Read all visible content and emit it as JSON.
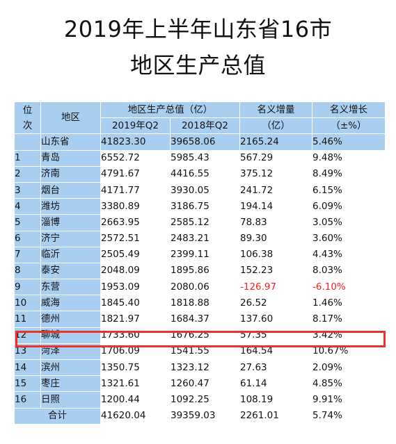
{
  "title": {
    "line1": "2019年上半年山东省16市",
    "line2": "地区生产总值"
  },
  "header": {
    "rank_line1": "位",
    "rank_line2": "次",
    "region": "地区",
    "gdp_group": "地区生产总值（亿）",
    "gdp_2019": "2019年Q2",
    "gdp_2018": "2018年Q2",
    "increase_line1": "名义增量",
    "increase_line2": "（亿）",
    "growth_line1": "名义增长",
    "growth_line2": "（±%）"
  },
  "province": {
    "region": "山东省",
    "gdp_2019": "41823.30",
    "gdp_2018": "39658.06",
    "increase": "2165.24",
    "growth": "5.46%"
  },
  "rows": [
    {
      "rank": "1",
      "region": "青岛",
      "gdp_2019": "6552.72",
      "gdp_2018": "5985.43",
      "increase": "567.29",
      "growth": "9.48%"
    },
    {
      "rank": "2",
      "region": "济南",
      "gdp_2019": "4791.67",
      "gdp_2018": "4416.55",
      "increase": "375.12",
      "growth": "8.49%"
    },
    {
      "rank": "3",
      "region": "烟台",
      "gdp_2019": "4171.77",
      "gdp_2018": "3930.05",
      "increase": "241.72",
      "growth": "6.15%"
    },
    {
      "rank": "4",
      "region": "潍坊",
      "gdp_2019": "3380.89",
      "gdp_2018": "3186.75",
      "increase": "194.14",
      "growth": "6.09%"
    },
    {
      "rank": "5",
      "region": "淄博",
      "gdp_2019": "2663.95",
      "gdp_2018": "2585.12",
      "increase": "78.83",
      "growth": "3.05%"
    },
    {
      "rank": "6",
      "region": "济宁",
      "gdp_2019": "2572.51",
      "gdp_2018": "2483.21",
      "increase": "89.30",
      "growth": "3.60%"
    },
    {
      "rank": "7",
      "region": "临沂",
      "gdp_2019": "2505.49",
      "gdp_2018": "2399.11",
      "increase": "106.38",
      "growth": "4.43%"
    },
    {
      "rank": "8",
      "region": "泰安",
      "gdp_2019": "2048.09",
      "gdp_2018": "1895.86",
      "increase": "152.23",
      "growth": "8.03%"
    },
    {
      "rank": "9",
      "region": "东营",
      "gdp_2019": "1953.09",
      "gdp_2018": "2080.06",
      "increase": "-126.97",
      "growth": "-6.10%",
      "negative": true
    },
    {
      "rank": "10",
      "region": "威海",
      "gdp_2019": "1845.40",
      "gdp_2018": "1818.88",
      "increase": "26.52",
      "growth": "1.46%"
    },
    {
      "rank": "11",
      "region": "德州",
      "gdp_2019": "1821.97",
      "gdp_2018": "1684.37",
      "increase": "137.60",
      "growth": "8.17%"
    },
    {
      "rank": "12",
      "region": "聊城",
      "gdp_2019": "1733.60",
      "gdp_2018": "1676.25",
      "increase": "57.35",
      "growth": "3.42%",
      "highlighted": true
    },
    {
      "rank": "13",
      "region": "菏泽",
      "gdp_2019": "1706.09",
      "gdp_2018": "1541.55",
      "increase": "164.54",
      "growth": "10.67%"
    },
    {
      "rank": "14",
      "region": "滨州",
      "gdp_2019": "1350.75",
      "gdp_2018": "1323.12",
      "increase": "27.63",
      "growth": "2.09%"
    },
    {
      "rank": "15",
      "region": "枣庄",
      "gdp_2019": "1321.61",
      "gdp_2018": "1260.47",
      "increase": "61.14",
      "growth": "4.85%"
    },
    {
      "rank": "16",
      "region": "日照",
      "gdp_2019": "1200.44",
      "gdp_2018": "1092.25",
      "increase": "108.19",
      "growth": "9.91%"
    }
  ],
  "total": {
    "label": "合计",
    "gdp_2019": "41620.04",
    "gdp_2018": "39359.03",
    "increase": "2261.01",
    "growth": "5.74%"
  },
  "colors": {
    "header_fill": "#a9cff0",
    "negative_text": "#ff1a1a",
    "highlight_border": "#e8322b"
  }
}
